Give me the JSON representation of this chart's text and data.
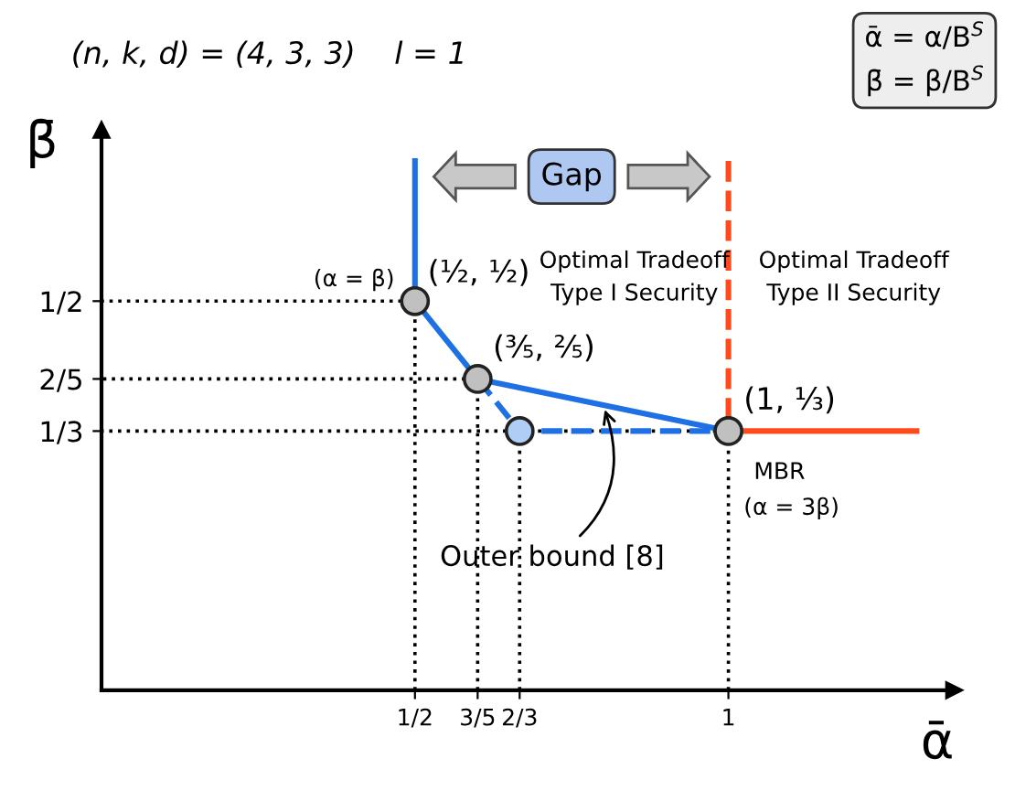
{
  "chart_data": {
    "type": "line",
    "title": "(n, k, d) = (4, 3, 3)    l = 1",
    "xlabel": "ᾱ",
    "ylabel": "β̄",
    "xlim": [
      0,
      1.36
    ],
    "ylim": [
      0,
      0.72
    ],
    "xticks": [
      {
        "value": 0.5,
        "label": "1/2"
      },
      {
        "value": 0.6,
        "label": "3/5"
      },
      {
        "value": 0.667,
        "label": "2/3"
      },
      1
    ],
    "yticks": [
      {
        "value": 0.333,
        "label": "1/3"
      },
      {
        "value": 0.4,
        "label": "2/5"
      },
      {
        "value": 0.5,
        "label": "1/2"
      }
    ],
    "grid": false,
    "legend": false,
    "series": [
      {
        "color": "#000000",
        "line_style": "dotted",
        "x": [
          0.5,
          0.5,
          0
        ],
        "values": [
          0,
          0.5,
          0.5
        ]
      },
      {
        "color": "#000000",
        "line_style": "dotted",
        "x": [
          0.6,
          0.6,
          0
        ],
        "values": [
          0,
          0.4,
          0.4
        ]
      },
      {
        "color": "#000000",
        "line_style": "dotted",
        "x": [
          0.667,
          0.667
        ],
        "values": [
          0,
          0.333
        ]
      },
      {
        "color": "#000000",
        "line_style": "dotted",
        "x": [
          1,
          1,
          0
        ],
        "values": [
          0,
          0.333,
          0.333
        ]
      },
      {
        "color": "#1f6fe5",
        "line_style": "dashed",
        "x": [
          0.6,
          0.667,
          1
        ],
        "values": [
          0.4,
          0.333,
          0.333
        ]
      },
      {
        "color": "#1f6fe5",
        "line_style": "solid",
        "x": [
          0.5,
          0.5,
          0.6,
          1
        ],
        "values": [
          0.68,
          0.5,
          0.4,
          0.333
        ]
      },
      {
        "color": "#ff4a1c",
        "line_style": "dashed",
        "x": [
          1,
          1
        ],
        "values": [
          0.68,
          0.333
        ]
      },
      {
        "color": "#ff4a1c",
        "line_style": "solid",
        "x": [
          1,
          1.3
        ],
        "values": [
          0.333,
          0.333
        ]
      },
      {
        "type": "scatter",
        "color": "#c0c0c0",
        "marker": "circle",
        "x": [
          0.5,
          0.6,
          1
        ],
        "values": [
          0.5,
          0.4,
          0.333
        ]
      },
      {
        "type": "scatter",
        "color": "#b0cdf5",
        "marker": "circle",
        "x": [
          0.667
        ],
        "values": [
          0.333
        ]
      }
    ],
    "annotations": [
      {
        "text": "(½, ½)",
        "x": 0.5,
        "y": 0.5
      },
      {
        "text": "(α = β)",
        "x": 0.5,
        "y": 0.5
      },
      {
        "text": "(⅗, ⅖)",
        "x": 0.6,
        "y": 0.4
      },
      {
        "text": "(1, ⅓)",
        "x": 1,
        "y": 0.333
      },
      {
        "text": "MBR",
        "x": 1,
        "y": 0.333
      },
      {
        "text": "(α = 3β)",
        "x": 1,
        "y": 0.333
      },
      {
        "text": "Outer bound [8]",
        "x": 0.8,
        "y": 0.3667
      },
      "Gap",
      "Optimal Tradeoff\nType I Security",
      "Optimal Tradeoff\nType II Security",
      "ᾱ = α/B$^{S}$\nβ̄ = β/B$^{S}$"
    ]
  }
}
